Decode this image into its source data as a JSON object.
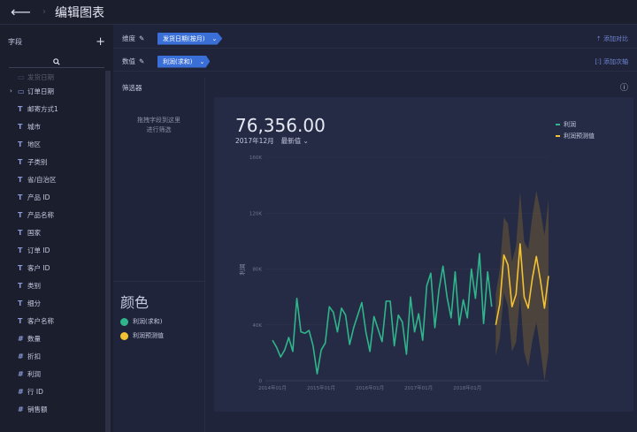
{
  "header": {
    "title": "编辑图表"
  },
  "fields_panel": {
    "title": "字段",
    "items": [
      {
        "label": "发货日期",
        "type": "date",
        "faded": true
      },
      {
        "label": "订单日期",
        "type": "date",
        "expand": true
      },
      {
        "label": "邮寄方式1",
        "type": "T"
      },
      {
        "label": "城市",
        "type": "T"
      },
      {
        "label": "地区",
        "type": "T"
      },
      {
        "label": "子类别",
        "type": "T"
      },
      {
        "label": "省/自治区",
        "type": "T"
      },
      {
        "label": "产品 ID",
        "type": "T"
      },
      {
        "label": "产品名称",
        "type": "T"
      },
      {
        "label": "国家",
        "type": "T"
      },
      {
        "label": "订单 ID",
        "type": "T"
      },
      {
        "label": "客户 ID",
        "type": "T"
      },
      {
        "label": "类别",
        "type": "T"
      },
      {
        "label": "细分",
        "type": "T"
      },
      {
        "label": "客户名称",
        "type": "T"
      },
      {
        "label": "数量",
        "type": "#"
      },
      {
        "label": "折扣",
        "type": "#"
      },
      {
        "label": "利润",
        "type": "#"
      },
      {
        "label": "行 ID",
        "type": "#"
      },
      {
        "label": "销售额",
        "type": "#"
      }
    ]
  },
  "shelves": {
    "dimension": {
      "label": "维度",
      "pill": "发货日期(按月)",
      "right": "添加对比"
    },
    "measure": {
      "label": "数值",
      "pill": "利润(求和)",
      "right": "添加次轴"
    }
  },
  "filter": {
    "title": "筛选器",
    "hint1": "拖拽字段到这里",
    "hint2": "进行筛选"
  },
  "color_section": {
    "title": "颜色",
    "items": [
      {
        "label": "利润(求和)",
        "color": "#2fb58b"
      },
      {
        "label": "利润预测值",
        "color": "#f2c234"
      }
    ]
  },
  "kpi": {
    "value": "76,356.00",
    "period": "2017年12月",
    "mode": "最新值"
  },
  "chart_data": {
    "type": "line",
    "ylabel": "利润",
    "ylim": [
      0,
      160000
    ],
    "yticks": [
      "0",
      "40K",
      "80K",
      "120K",
      "160K"
    ],
    "xticks": [
      "2014年01月",
      "2015年01月",
      "2016年01月",
      "2017年01月",
      "2018年01月"
    ],
    "legend": [
      "利润",
      "利润预测值"
    ],
    "series": [
      {
        "name": "利润",
        "color": "#2fb58b",
        "values": [
          29000,
          24000,
          17000,
          22000,
          31000,
          21000,
          59000,
          35000,
          34000,
          36000,
          25000,
          5000,
          22000,
          27000,
          53000,
          49000,
          35000,
          52000,
          47000,
          26000,
          38000,
          47000,
          56000,
          35000,
          21000,
          46000,
          37000,
          28000,
          57000,
          57000,
          25000,
          47000,
          42000,
          19000,
          60000,
          35000,
          48000,
          29000,
          68000,
          77000,
          38000,
          65000,
          82000,
          60000,
          45000,
          78000,
          40000,
          58000,
          45000,
          80000,
          59000,
          91000,
          41000,
          78000,
          53000
        ]
      },
      {
        "name": "利润预测值",
        "color": "#f2c234",
        "values": [
          40000,
          55000,
          90000,
          83000,
          53000,
          62000,
          98000,
          60000,
          52000,
          73000,
          89000,
          72000,
          52000,
          75000
        ]
      }
    ]
  }
}
